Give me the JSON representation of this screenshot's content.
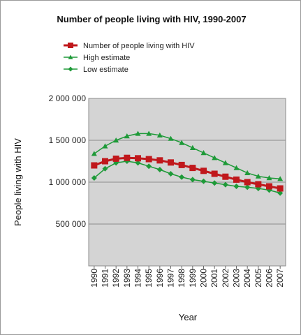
{
  "chart_data": {
    "type": "line",
    "title": "Number of people living with HIV, 1990-2007",
    "xlabel": "Year",
    "ylabel": "People living with HIV",
    "ylim": [
      0,
      2000000
    ],
    "yticks": [
      500000,
      1000000,
      1500000,
      2000000
    ],
    "ytick_labels": [
      "500 000",
      "1 000 000",
      "1 500 000",
      "2 000 000"
    ],
    "grid": true,
    "plot_background": "#d4d4d4",
    "legend_position": "top",
    "x": [
      "1990",
      "1991",
      "1992",
      "1993",
      "1994",
      "1995",
      "1996",
      "1997",
      "1998",
      "1999",
      "2000",
      "2001",
      "2002",
      "2003",
      "2004",
      "2005",
      "2006",
      "2007"
    ],
    "series": [
      {
        "name": "Number of people living with HIV",
        "color": "#c0181c",
        "marker": "square",
        "values": [
          1200000,
          1250000,
          1280000,
          1290000,
          1285000,
          1275000,
          1260000,
          1235000,
          1205000,
          1170000,
          1135000,
          1100000,
          1065000,
          1030000,
          1000000,
          975000,
          950000,
          925000
        ]
      },
      {
        "name": "High estimate",
        "color": "#1e9a38",
        "marker": "triangle",
        "values": [
          1340000,
          1430000,
          1500000,
          1550000,
          1580000,
          1580000,
          1560000,
          1520000,
          1470000,
          1410000,
          1350000,
          1290000,
          1230000,
          1170000,
          1110000,
          1070000,
          1050000,
          1040000
        ]
      },
      {
        "name": "Low estimate",
        "color": "#1e9a38",
        "marker": "diamond",
        "values": [
          1050000,
          1160000,
          1230000,
          1250000,
          1230000,
          1190000,
          1150000,
          1100000,
          1060000,
          1030000,
          1010000,
          990000,
          970000,
          950000,
          940000,
          925000,
          905000,
          870000
        ]
      }
    ]
  }
}
